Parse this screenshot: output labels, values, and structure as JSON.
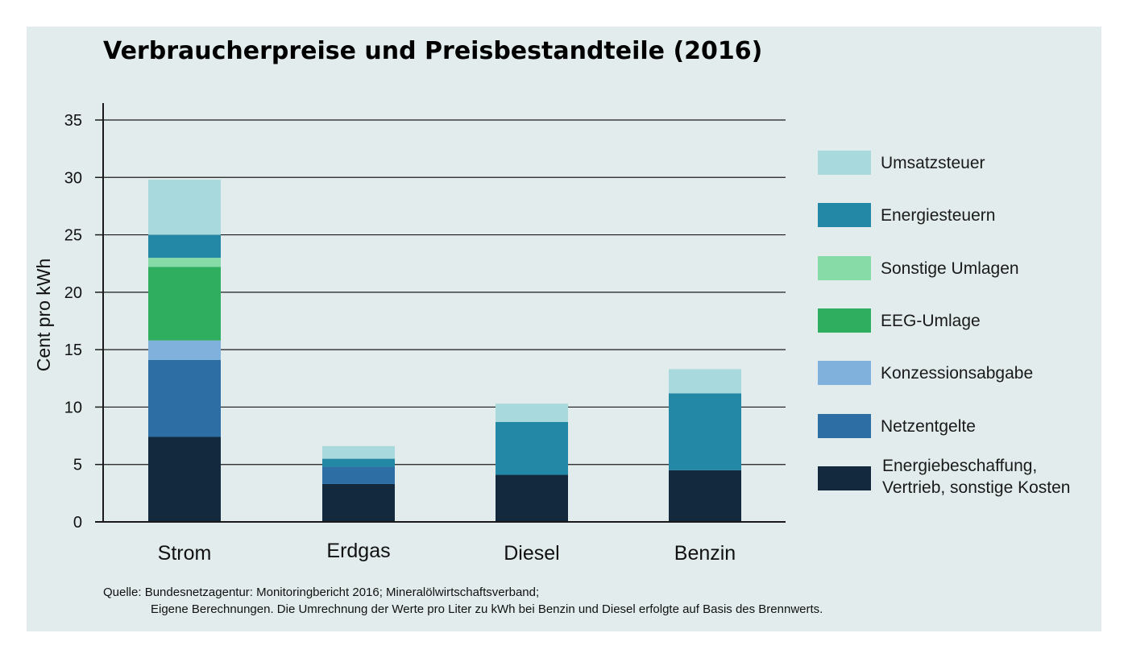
{
  "chart_data": {
    "type": "bar",
    "stacked": true,
    "title": "Verbraucherpreise und Preisbestandteile (2016)",
    "ylabel": "Cent pro kWh",
    "xlabel": "",
    "ylim": [
      0,
      35
    ],
    "yticks": [
      0,
      5,
      10,
      15,
      20,
      25,
      30,
      35
    ],
    "grid": true,
    "legend_position": "right",
    "categories": [
      "Strom",
      "Erdgas",
      "Diesel",
      "Benzin"
    ],
    "series": [
      {
        "name": "Energiebeschaffung, Vertrieb, sonstige Kosten",
        "color": "#132a3e",
        "values": [
          7.4,
          3.3,
          4.1,
          4.5
        ]
      },
      {
        "name": "Netzentgelte",
        "color": "#2d6ea5",
        "values": [
          6.7,
          1.5,
          0,
          0
        ]
      },
      {
        "name": "Konzessionsabgabe",
        "color": "#7fb1dc",
        "values": [
          1.7,
          0,
          0,
          0
        ]
      },
      {
        "name": "EEG-Umlage",
        "color": "#2fae5f",
        "values": [
          6.4,
          0,
          0,
          0
        ]
      },
      {
        "name": "Sonstige Umlagen",
        "color": "#86dba6",
        "values": [
          0.8,
          0,
          0,
          0
        ]
      },
      {
        "name": "Energiesteuern",
        "color": "#2388a6",
        "values": [
          2.0,
          0.7,
          4.6,
          6.7
        ]
      },
      {
        "name": "Umsatzsteuer",
        "color": "#a8d9dc",
        "values": [
          4.8,
          1.1,
          1.6,
          2.1
        ]
      }
    ]
  },
  "source": {
    "line1": "Quelle: Bundesnetzagentur: Monitoringbericht 2016; Mineralölwirtschaftsverband;",
    "line2": "Eigene Berechnungen. Die Umrechnung der Werte pro Liter zu kWh bei Benzin und Diesel erfolgte auf Basis des Brennwerts."
  }
}
